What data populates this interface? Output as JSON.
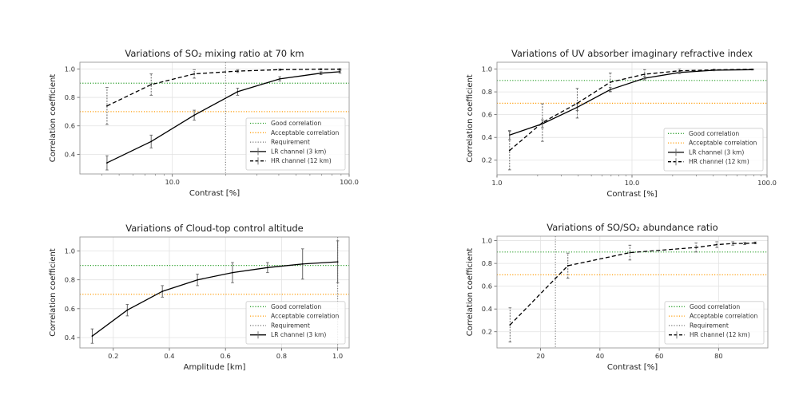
{
  "chart_data": [
    {
      "type": "line",
      "title": "Variations of SO₂ mixing ratio at 70 km",
      "xlabel": "Contrast [%]",
      "ylabel": "Correlation coefficient",
      "xscale": "log",
      "xlim": [
        3.0,
        100
      ],
      "ylim": [
        0.262,
        1.047
      ],
      "xticks": [
        10,
        100
      ],
      "xticklabels": [
        "10.0",
        "100.0"
      ],
      "yticks": [
        0.4,
        0.6,
        0.8,
        1.0
      ],
      "yticklabels": [
        "0.4",
        "0.6",
        "0.8",
        "1.0"
      ],
      "grid": true,
      "hlines": [
        {
          "y": 0.9,
          "color": "#2ca02c",
          "label": "Good correlation"
        },
        {
          "y": 0.7,
          "color": "#ff9f0e",
          "label": "Acceptable correlation"
        }
      ],
      "vline": {
        "x": 20,
        "color": "#777777",
        "label": "Requirement"
      },
      "series": [
        {
          "name": "LR channel (3 km)",
          "style": "solid",
          "x": [
            4.27,
            7.59,
            13.3,
            23.4,
            40.5,
            69.2,
            88.7
          ],
          "y": [
            0.34,
            0.49,
            0.675,
            0.84,
            0.93,
            0.97,
            0.98
          ],
          "err": [
            0.05,
            0.045,
            0.035,
            0.025,
            0.015,
            0.01,
            0.01
          ]
        },
        {
          "name": "HR channel (12 km)",
          "style": "dashed",
          "x": [
            4.27,
            7.59,
            13.3,
            23.4,
            40.5,
            69.2,
            88.7
          ],
          "y": [
            0.74,
            0.89,
            0.965,
            0.985,
            0.995,
            0.998,
            0.998
          ],
          "err": [
            0.13,
            0.075,
            0.03,
            0.01,
            0.005,
            0.004,
            0.004
          ]
        }
      ],
      "legend": {
        "placement": "lower-right",
        "entries": [
          "Good correlation",
          "Acceptable correlation",
          "Requirement",
          "LR channel (3 km)",
          "HR channel (12 km)"
        ]
      }
    },
    {
      "type": "line",
      "title": "Variations of UV absorber imaginary refractive index",
      "xlabel": "Contrast [%]",
      "ylabel": "Correlation coefficient",
      "xscale": "log",
      "xlim": [
        1.0,
        100
      ],
      "ylim": [
        0.072,
        1.06
      ],
      "xticks": [
        1,
        10,
        100
      ],
      "xticklabels": [
        "1.0",
        "10.0",
        "100.0"
      ],
      "yticks": [
        0.2,
        0.4,
        0.6,
        0.8,
        1.0
      ],
      "yticklabels": [
        "0.2",
        "0.4",
        "0.6",
        "0.8",
        "1.0"
      ],
      "grid": true,
      "hlines": [
        {
          "y": 0.9,
          "color": "#2ca02c",
          "label": "Good correlation"
        },
        {
          "y": 0.7,
          "color": "#ff9f0e",
          "label": "Acceptable correlation"
        }
      ],
      "vline": null,
      "series": [
        {
          "name": "LR channel (3 km)",
          "style": "solid",
          "x": [
            1.24,
            2.17,
            3.93,
            6.9,
            12.4,
            22.5,
            40.5,
            78
          ],
          "y": [
            0.42,
            0.52,
            0.665,
            0.82,
            0.92,
            0.97,
            0.99,
            0.995
          ],
          "err": [
            0.04,
            0.035,
            0.03,
            0.02,
            0.015,
            0.01,
            0.005,
            0.003
          ]
        },
        {
          "name": "HR channel (12 km)",
          "style": "dashed",
          "x": [
            1.24,
            2.17,
            3.93,
            6.9,
            12.4,
            22.5,
            40.5,
            78
          ],
          "y": [
            0.285,
            0.53,
            0.7,
            0.885,
            0.955,
            0.985,
            0.993,
            0.998
          ],
          "err": [
            0.17,
            0.165,
            0.13,
            0.08,
            0.04,
            0.015,
            0.006,
            0.003
          ]
        }
      ],
      "legend": {
        "placement": "lower-right",
        "entries": [
          "Good correlation",
          "Acceptable correlation",
          "LR channel (3 km)",
          "HR channel (12 km)"
        ]
      }
    },
    {
      "type": "line",
      "title": "Variations of Cloud-top control altitude",
      "xlabel": "Amplitude [km]",
      "ylabel": "Correlation coefficient",
      "xscale": "linear",
      "xlim": [
        0.081,
        1.041
      ],
      "ylim": [
        0.328,
        1.097
      ],
      "xticks": [
        0.2,
        0.4,
        0.6,
        0.8,
        1.0
      ],
      "xticklabels": [
        "0.2",
        "0.4",
        "0.6",
        "0.8",
        "1.0"
      ],
      "yticks": [
        0.4,
        0.6,
        0.8,
        1.0
      ],
      "yticklabels": [
        "0.4",
        "0.6",
        "0.8",
        "1.0"
      ],
      "grid": true,
      "hlines": [
        {
          "y": 0.9,
          "color": "#2ca02c",
          "label": "Good correlation"
        },
        {
          "y": 0.7,
          "color": "#ff9f0e",
          "label": "Acceptable correlation"
        }
      ],
      "vline": {
        "x": 1.0,
        "color": "#777777",
        "label": "Requirement"
      },
      "series": [
        {
          "name": "LR channel (3 km)",
          "style": "solid",
          "x": [
            0.125,
            0.25,
            0.375,
            0.5,
            0.625,
            0.75,
            0.875,
            1.0
          ],
          "y": [
            0.41,
            0.59,
            0.72,
            0.8,
            0.85,
            0.885,
            0.91,
            0.925
          ],
          "err": [
            0.05,
            0.04,
            0.04,
            0.04,
            0.07,
            0.035,
            0.105,
            0.145
          ]
        }
      ],
      "legend": {
        "placement": "lower-right",
        "entries": [
          "Good correlation",
          "Acceptable correlation",
          "Requirement",
          "LR channel (3 km)"
        ]
      }
    },
    {
      "type": "line",
      "title": "Variations of SO/SO₂ abundance ratio",
      "xlabel": "Contrast [%]",
      "ylabel": "Correlation coefficient",
      "xscale": "linear",
      "xlim": [
        5.3,
        96.6
      ],
      "ylim": [
        0.058,
        1.039
      ],
      "xticks": [
        20,
        40,
        60,
        80
      ],
      "xticklabels": [
        "20",
        "40",
        "60",
        "80"
      ],
      "yticks": [
        0.2,
        0.4,
        0.6,
        0.8,
        1.0
      ],
      "yticklabels": [
        "0.2",
        "0.4",
        "0.6",
        "0.8",
        "1.0"
      ],
      "grid": true,
      "hlines": [
        {
          "y": 0.9,
          "color": "#2ca02c",
          "label": "Good correlation"
        },
        {
          "y": 0.7,
          "color": "#ff9f0e",
          "label": "Acceptable correlation"
        }
      ],
      "vline": {
        "x": 25,
        "color": "#777777",
        "label": "Requirement"
      },
      "series": [
        {
          "name": "HR channel (12 km)",
          "style": "dashed",
          "x": [
            9.7,
            29.2,
            50.1,
            72.4,
            79.4,
            84.8,
            88.8,
            92.4
          ],
          "y": [
            0.26,
            0.78,
            0.895,
            0.94,
            0.965,
            0.975,
            0.975,
            0.98
          ],
          "err": [
            0.15,
            0.11,
            0.065,
            0.04,
            0.025,
            0.015,
            0.01,
            0.008
          ]
        }
      ],
      "legend": {
        "placement": "lower-right",
        "entries": [
          "Good correlation",
          "Acceptable correlation",
          "Requirement",
          "HR channel (12 km)"
        ]
      }
    }
  ]
}
